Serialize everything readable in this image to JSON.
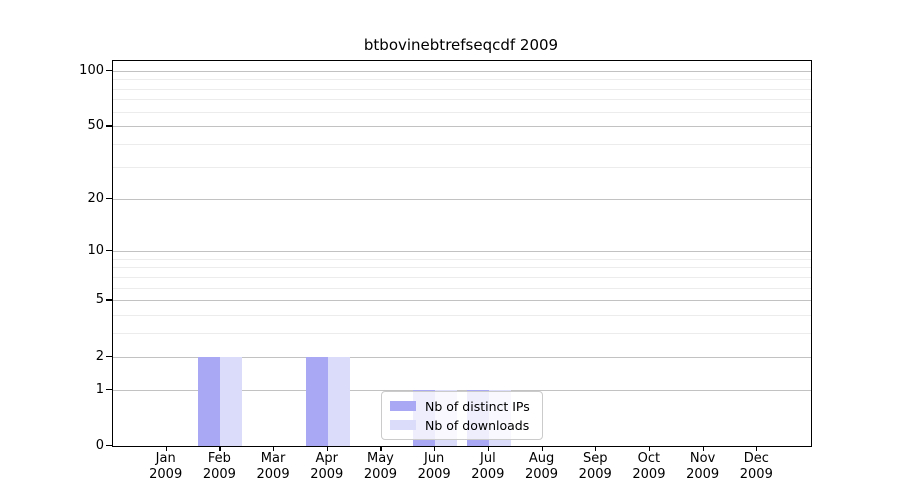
{
  "title": "btbovinebtrefseqcdf 2009",
  "chart_data": {
    "type": "bar",
    "title": "btbovinebtrefseqcdf 2009",
    "categories": [
      "Jan",
      "Feb",
      "Mar",
      "Apr",
      "May",
      "Jun",
      "Jul",
      "Aug",
      "Sep",
      "Oct",
      "Nov",
      "Dec"
    ],
    "x_sub_label": "2009",
    "series": [
      {
        "name": "Nb of distinct IPs",
        "color": "#a8a8f4",
        "values": [
          0,
          2,
          0,
          2,
          0,
          1,
          1,
          0,
          0,
          0,
          0,
          0
        ]
      },
      {
        "name": "Nb of downloads",
        "color": "#dbdbfa",
        "values": [
          0,
          2,
          0,
          2,
          0,
          1,
          1,
          0,
          0,
          0,
          0,
          0
        ]
      }
    ],
    "yscale": "log1p",
    "yticks": [
      0,
      1,
      2,
      5,
      10,
      20,
      50,
      100
    ],
    "yticks_minor": [
      3,
      4,
      6,
      7,
      8,
      9,
      30,
      40,
      60,
      70,
      80,
      90
    ],
    "ylim": [
      0,
      113
    ],
    "grid": true,
    "legend_position": "lower-center",
    "colors": {
      "major_grid": "#c2c2c2",
      "minor_grid": "#ececec",
      "axis": "#000000",
      "legend_border": "#cbcbcb"
    }
  }
}
